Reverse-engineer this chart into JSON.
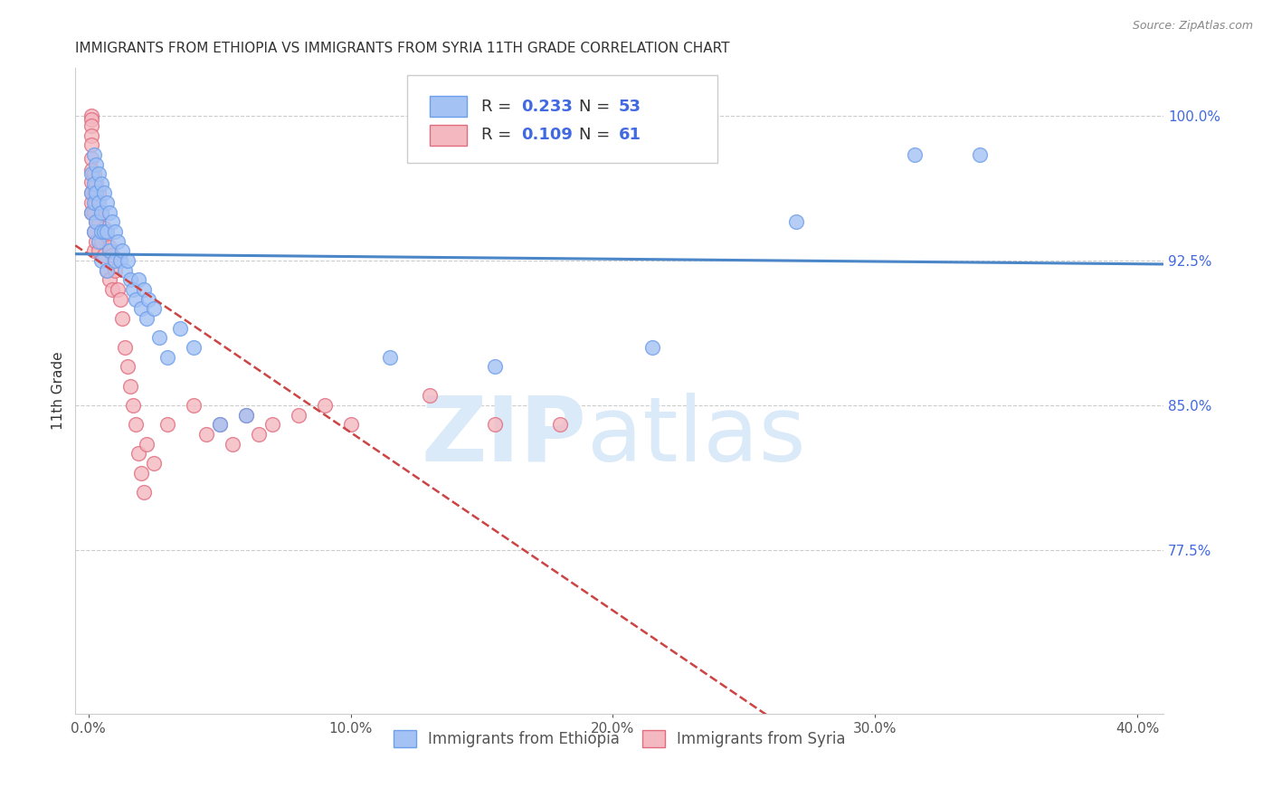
{
  "title": "IMMIGRANTS FROM ETHIOPIA VS IMMIGRANTS FROM SYRIA 11TH GRADE CORRELATION CHART",
  "source": "Source: ZipAtlas.com",
  "ylabel_left": "11th Grade",
  "xlabel_ticks": [
    "0.0%",
    "10.0%",
    "20.0%",
    "30.0%",
    "40.0%"
  ],
  "xlabel_vals": [
    0.0,
    0.1,
    0.2,
    0.3,
    0.4
  ],
  "ylabel_right_ticks": [
    "100.0%",
    "92.5%",
    "85.0%",
    "77.5%"
  ],
  "ylabel_right_vals": [
    1.0,
    0.925,
    0.85,
    0.775
  ],
  "ylim": [
    0.69,
    1.025
  ],
  "xlim": [
    -0.005,
    0.41
  ],
  "r_ethiopia": 0.233,
  "n_ethiopia": 53,
  "r_syria": 0.109,
  "n_syria": 61,
  "color_ethiopia": "#a4c2f4",
  "color_syria": "#f4b8c1",
  "color_ethiopia_edge": "#6d9eeb",
  "color_syria_edge": "#e06c7d",
  "color_ethiopia_line": "#4a86c8",
  "color_syria_line": "#cc4444",
  "watermark_zip": "ZIP",
  "watermark_atlas": "atlas",
  "watermark_color": "#daeaf8",
  "legend_r_color": "#4169e1",
  "ethiopia_x": [
    0.001,
    0.001,
    0.001,
    0.002,
    0.002,
    0.002,
    0.002,
    0.003,
    0.003,
    0.003,
    0.004,
    0.004,
    0.004,
    0.005,
    0.005,
    0.005,
    0.005,
    0.006,
    0.006,
    0.007,
    0.007,
    0.007,
    0.008,
    0.008,
    0.009,
    0.01,
    0.01,
    0.011,
    0.012,
    0.013,
    0.014,
    0.015,
    0.016,
    0.017,
    0.018,
    0.019,
    0.02,
    0.021,
    0.022,
    0.023,
    0.025,
    0.027,
    0.03,
    0.035,
    0.04,
    0.05,
    0.06,
    0.115,
    0.155,
    0.215,
    0.27,
    0.315,
    0.34
  ],
  "ethiopia_y": [
    0.97,
    0.96,
    0.95,
    0.98,
    0.965,
    0.955,
    0.94,
    0.975,
    0.96,
    0.945,
    0.97,
    0.955,
    0.935,
    0.965,
    0.95,
    0.94,
    0.925,
    0.96,
    0.94,
    0.955,
    0.94,
    0.92,
    0.95,
    0.93,
    0.945,
    0.94,
    0.925,
    0.935,
    0.925,
    0.93,
    0.92,
    0.925,
    0.915,
    0.91,
    0.905,
    0.915,
    0.9,
    0.91,
    0.895,
    0.905,
    0.9,
    0.885,
    0.875,
    0.89,
    0.88,
    0.84,
    0.845,
    0.875,
    0.87,
    0.88,
    0.945,
    0.98,
    0.98
  ],
  "syria_x": [
    0.001,
    0.001,
    0.001,
    0.001,
    0.001,
    0.001,
    0.001,
    0.001,
    0.001,
    0.001,
    0.001,
    0.002,
    0.002,
    0.002,
    0.002,
    0.002,
    0.003,
    0.003,
    0.003,
    0.003,
    0.004,
    0.004,
    0.004,
    0.005,
    0.005,
    0.006,
    0.006,
    0.007,
    0.007,
    0.008,
    0.008,
    0.009,
    0.009,
    0.01,
    0.011,
    0.012,
    0.013,
    0.014,
    0.015,
    0.016,
    0.017,
    0.018,
    0.019,
    0.02,
    0.021,
    0.022,
    0.025,
    0.03,
    0.04,
    0.045,
    0.05,
    0.055,
    0.06,
    0.065,
    0.07,
    0.08,
    0.09,
    0.1,
    0.13,
    0.155,
    0.18
  ],
  "syria_y": [
    1.0,
    0.998,
    0.995,
    0.99,
    0.985,
    0.978,
    0.972,
    0.966,
    0.96,
    0.955,
    0.95,
    0.97,
    0.96,
    0.95,
    0.94,
    0.93,
    0.965,
    0.955,
    0.945,
    0.935,
    0.96,
    0.945,
    0.93,
    0.95,
    0.935,
    0.942,
    0.928,
    0.938,
    0.92,
    0.932,
    0.915,
    0.928,
    0.91,
    0.92,
    0.91,
    0.905,
    0.895,
    0.88,
    0.87,
    0.86,
    0.85,
    0.84,
    0.825,
    0.815,
    0.805,
    0.83,
    0.82,
    0.84,
    0.85,
    0.835,
    0.84,
    0.83,
    0.845,
    0.835,
    0.84,
    0.845,
    0.85,
    0.84,
    0.855,
    0.84,
    0.84
  ]
}
